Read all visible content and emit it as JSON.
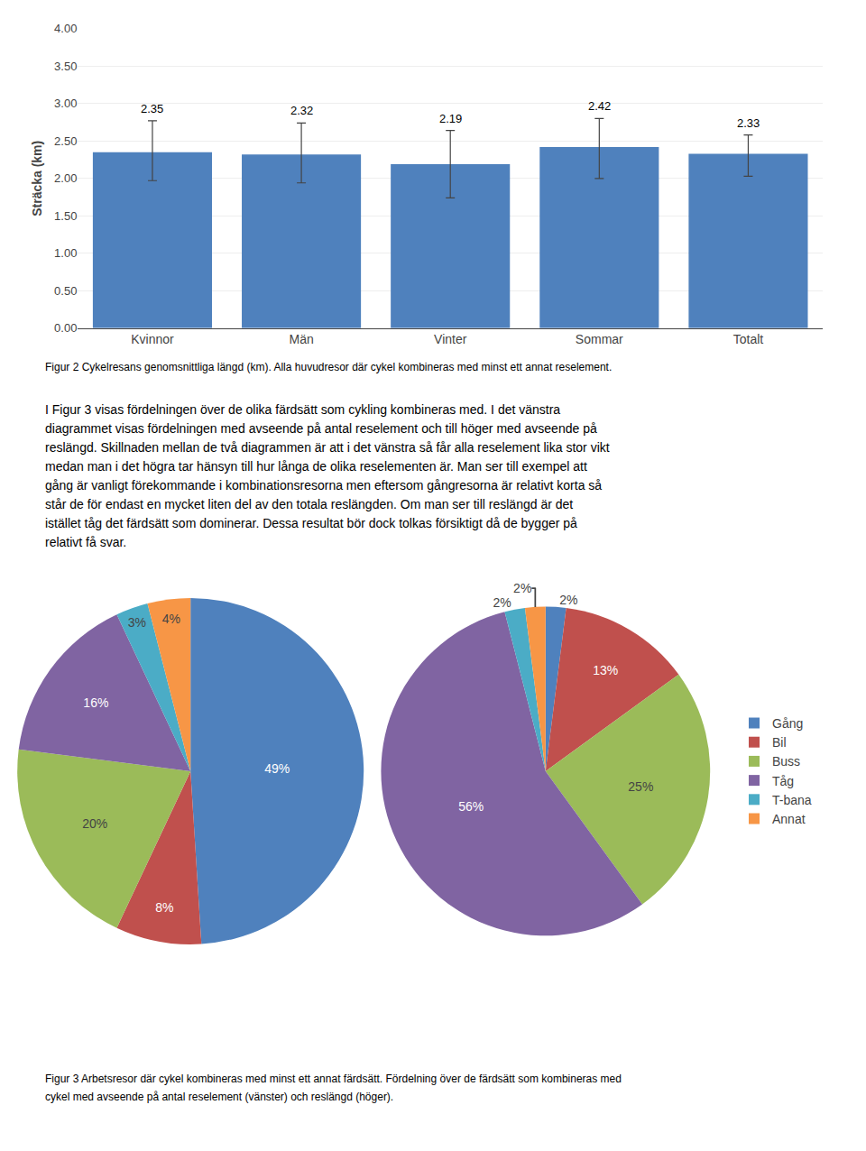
{
  "chart_data": [
    {
      "type": "bar",
      "ylabel": "Sträcka (km)",
      "categories": [
        "Kvinnor",
        "Män",
        "Vinter",
        "Sommar",
        "Totalt"
      ],
      "values": [
        2.35,
        2.32,
        2.19,
        2.42,
        2.33
      ],
      "errors_upper": [
        0.42,
        0.42,
        0.45,
        0.38,
        0.25
      ],
      "errors_lower": [
        0.38,
        0.38,
        0.45,
        0.42,
        0.3
      ],
      "color": "#4F81BD",
      "ylim": [
        0.0,
        4.0
      ],
      "yticks": [
        {
          "value": 0.0,
          "label": "0.00"
        },
        {
          "value": 0.5,
          "label": "0.50"
        },
        {
          "value": 1.0,
          "label": "1.00"
        },
        {
          "value": 1.5,
          "label": "1.50"
        },
        {
          "value": 2.0,
          "label": "2.00"
        },
        {
          "value": 2.5,
          "label": "2.50"
        },
        {
          "value": 3.0,
          "label": "3.00"
        },
        {
          "value": 3.5,
          "label": "3.50"
        },
        {
          "value": 4.0,
          "label": "4.00"
        }
      ],
      "grid": true,
      "data_labels": true,
      "annotations": [
        "Figur 2 Cykelresans genomsnittliga längd (km). Alla huvudresor där cykel kombineras med minst ett annat reselement."
      ]
    },
    {
      "type": "pie",
      "categories": [
        "Gång",
        "Bil",
        "Buss",
        "Tåg",
        "T-bana",
        "Annat"
      ],
      "values": [
        49,
        8,
        20,
        16,
        3,
        4
      ],
      "value_labels": [
        "49%",
        "8%",
        "20%",
        "16%",
        "3%",
        "4%"
      ],
      "colors": [
        "#4F81BD",
        "#C0504D",
        "#9BBB59",
        "#8064A2",
        "#4BACC6",
        "#F79646"
      ],
      "data_labels": true,
      "annotations": [
        "I Figur 3 visas fördelningen över de olika färdsätt som cykling kombineras med. I det vänstra",
        "diagrammet visas fördelningen med avseende på antal reselement och till höger med avseende på",
        "reslängd. Skillnaden mellan de två diagrammen är att i det vänstra så får alla reselement lika stor vikt",
        "medan man i det högra tar hänsyn till hur långa de olika reselementen är. Man ser till exempel att",
        "gång är vanligt förekommande i kombinationsresorna men eftersom gångresorna är relativt korta så",
        "står de för endast en mycket liten del av den totala reslängden. Om man ser till reslängd är det",
        "istället tåg det färdsätt som dominerar. Dessa resultat bör dock tolkas försiktigt då de bygger på",
        "relativt få svar."
      ]
    },
    {
      "type": "pie",
      "categories": [
        "Gång",
        "Bil",
        "Buss",
        "Tåg",
        "T-bana",
        "Annat"
      ],
      "values": [
        2,
        13,
        25,
        56,
        2,
        2
      ],
      "value_labels": [
        "2%",
        "13%",
        "25%",
        "56%",
        "2%",
        "2%"
      ],
      "colors": [
        "#4F81BD",
        "#C0504D",
        "#9BBB59",
        "#8064A2",
        "#4BACC6",
        "#F79646"
      ],
      "data_labels": true,
      "legend": "right",
      "annotations": [
        "Figur 3 Arbetsresor där cykel kombineras med minst ett annat färdsätt. Fördelning över de färdsätt som kombineras med",
        "cykel med avseende på antal reselement (vänster) och reslängd (höger)."
      ]
    }
  ]
}
